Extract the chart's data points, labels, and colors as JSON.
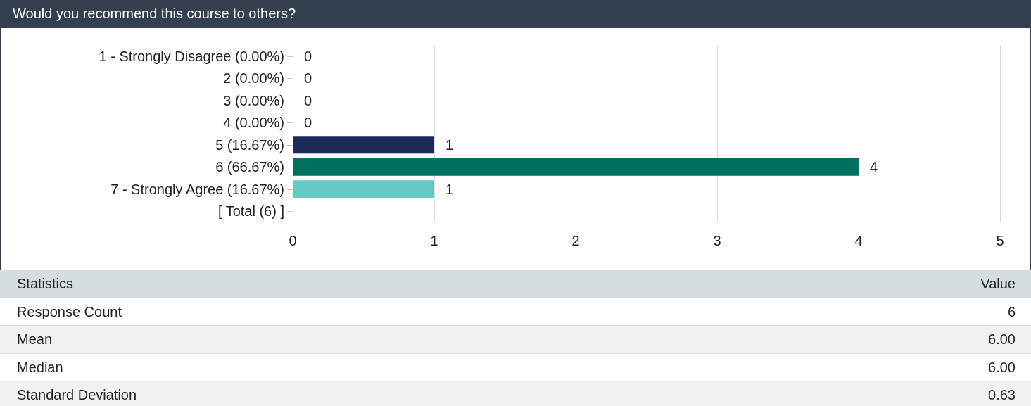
{
  "chart_data": {
    "type": "bar",
    "orientation": "horizontal",
    "title": "Would you recommend this course to others?",
    "categories": [
      "1 - Strongly Disagree (0.00%)",
      "2 (0.00%)",
      "3 (0.00%)",
      "4 (0.00%)",
      "5 (16.67%)",
      "6 (66.67%)",
      "7 - Strongly Agree (16.67%)",
      "[ Total (6) ]"
    ],
    "values": [
      0,
      0,
      0,
      0,
      1,
      4,
      1,
      null
    ],
    "colors": [
      "#1b2a56",
      "#1b2a56",
      "#1b2a56",
      "#1b2a56",
      "#1b2a56",
      "#00705f",
      "#66c9c6",
      "#66c9c6"
    ],
    "xlim": [
      0,
      5
    ],
    "xticks": [
      0,
      1,
      2,
      3,
      4,
      5
    ],
    "grid": "x",
    "data_labels": true,
    "annotations": [
      "Statistics",
      "Value",
      "Response Count",
      "6",
      "Mean",
      "6.00",
      "Median",
      "6.00",
      "Standard Deviation",
      "0.63"
    ]
  }
}
